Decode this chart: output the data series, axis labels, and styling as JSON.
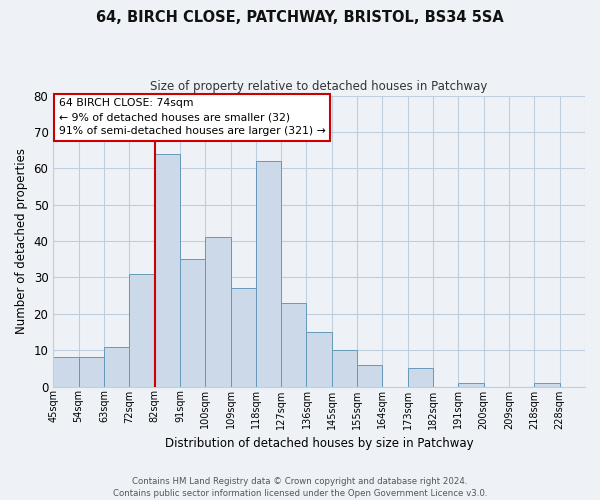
{
  "title": "64, BIRCH CLOSE, PATCHWAY, BRISTOL, BS34 5SA",
  "subtitle": "Size of property relative to detached houses in Patchway",
  "xlabel": "Distribution of detached houses by size in Patchway",
  "ylabel": "Number of detached properties",
  "bin_labels": [
    "45sqm",
    "54sqm",
    "63sqm",
    "72sqm",
    "82sqm",
    "91sqm",
    "100sqm",
    "109sqm",
    "118sqm",
    "127sqm",
    "136sqm",
    "145sqm",
    "155sqm",
    "164sqm",
    "173sqm",
    "182sqm",
    "191sqm",
    "200sqm",
    "209sqm",
    "218sqm",
    "228sqm"
  ],
  "bar_values": [
    8,
    8,
    11,
    31,
    64,
    35,
    41,
    27,
    62,
    23,
    15,
    10,
    6,
    0,
    5,
    0,
    1,
    0,
    0,
    1,
    0
  ],
  "bar_color": "#ccd9e8",
  "bar_edge_color": "#6699bb",
  "vline_color": "#cc0000",
  "vline_index": 4,
  "ylim": [
    0,
    80
  ],
  "yticks": [
    0,
    10,
    20,
    30,
    40,
    50,
    60,
    70,
    80
  ],
  "annotation_title": "64 BIRCH CLOSE: 74sqm",
  "annotation_line1": "← 9% of detached houses are smaller (32)",
  "annotation_line2": "91% of semi-detached houses are larger (321) →",
  "annotation_box_facecolor": "#ffffff",
  "annotation_box_edgecolor": "#cc0000",
  "footer1": "Contains HM Land Registry data © Crown copyright and database right 2024.",
  "footer2": "Contains public sector information licensed under the Open Government Licence v3.0.",
  "bg_color": "#eef2f7",
  "plot_bg_color": "#eef2f7",
  "grid_color": "#c0cfe0"
}
